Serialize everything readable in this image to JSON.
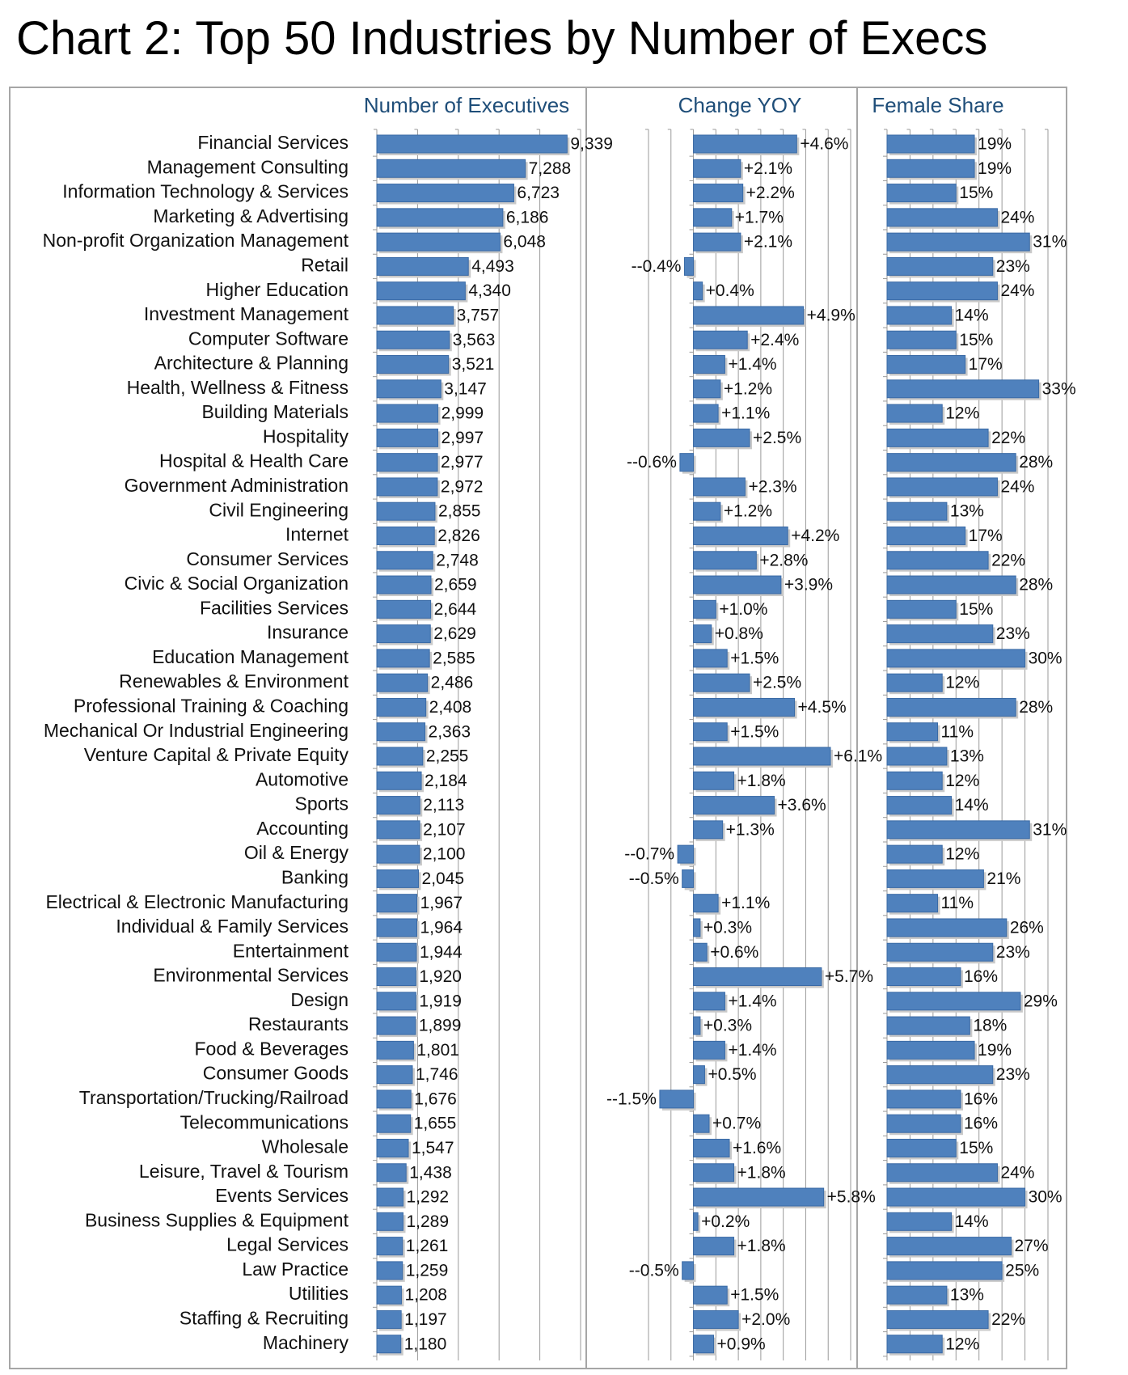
{
  "chart_data": {
    "type": "bar",
    "title": "Chart 2: Top 50 Industries by Number of Execs",
    "categories": [
      "Financial Services",
      "Management Consulting",
      "Information Technology & Services",
      "Marketing & Advertising",
      "Non-profit Organization Management",
      "Retail",
      "Higher Education",
      "Investment Management",
      "Computer Software",
      "Architecture & Planning",
      "Health, Wellness & Fitness",
      "Building Materials",
      "Hospitality",
      "Hospital & Health Care",
      "Government Administration",
      "Civil Engineering",
      "Internet",
      "Consumer Services",
      "Civic & Social Organization",
      "Facilities Services",
      "Insurance",
      "Education Management",
      "Renewables & Environment",
      "Professional Training & Coaching",
      "Mechanical Or Industrial Engineering",
      "Venture Capital & Private Equity",
      "Automotive",
      "Sports",
      "Accounting",
      "Oil & Energy",
      "Banking",
      "Electrical & Electronic Manufacturing",
      "Individual & Family Services",
      "Entertainment",
      "Environmental Services",
      "Design",
      "Restaurants",
      "Food & Beverages",
      "Consumer Goods",
      "Transportation/Trucking/Railroad",
      "Telecommunications",
      "Wholesale",
      "Leisure, Travel & Tourism",
      "Events Services",
      "Business Supplies & Equipment",
      "Legal Services",
      "Law Practice",
      "Utilities",
      "Staffing & Recruiting",
      "Machinery"
    ],
    "panels": [
      {
        "name": "Number of Executives",
        "xlim": [
          0,
          10000
        ],
        "values": [
          9339,
          7288,
          6723,
          6186,
          6048,
          4493,
          4340,
          3757,
          3563,
          3521,
          3147,
          2999,
          2997,
          2977,
          2972,
          2855,
          2826,
          2748,
          2659,
          2644,
          2629,
          2585,
          2486,
          2408,
          2363,
          2255,
          2184,
          2113,
          2107,
          2100,
          2045,
          1967,
          1964,
          1944,
          1920,
          1919,
          1899,
          1801,
          1746,
          1676,
          1655,
          1547,
          1438,
          1292,
          1289,
          1261,
          1259,
          1208,
          1197,
          1180
        ],
        "labels": [
          "9,339",
          "7,288",
          "6,723",
          "6,186",
          "6,048",
          "4,493",
          "4,340",
          "3,757",
          "3,563",
          "3,521",
          "3,147",
          "2,999",
          "2,997",
          "2,977",
          "2,972",
          "2,855",
          "2,826",
          "2,748",
          "2,659",
          "2,644",
          "2,629",
          "2,585",
          "2,486",
          "2,408",
          "2,363",
          "2,255",
          "2,184",
          "2,113",
          "2,107",
          "2,100",
          "2,045",
          "1,967",
          "1,964",
          "1,944",
          "1,920",
          "1,919",
          "1,899",
          "1,801",
          "1,746",
          "1,676",
          "1,655",
          "1,547",
          "1,438",
          "1,292",
          "1,289",
          "1,261",
          "1,259",
          "1,208",
          "1,197",
          "1,180"
        ]
      },
      {
        "name": "Change YOY",
        "xlim": [
          -2,
          7
        ],
        "values": [
          4.6,
          2.1,
          2.2,
          1.7,
          2.1,
          -0.4,
          0.4,
          4.9,
          2.4,
          1.4,
          1.2,
          1.1,
          2.5,
          -0.6,
          2.3,
          1.2,
          4.2,
          2.8,
          3.9,
          1.0,
          0.8,
          1.5,
          2.5,
          4.5,
          1.5,
          6.1,
          1.8,
          3.6,
          1.3,
          -0.7,
          -0.5,
          1.1,
          0.3,
          0.6,
          5.7,
          1.4,
          0.3,
          1.4,
          0.5,
          -1.5,
          0.7,
          1.6,
          1.8,
          5.8,
          0.2,
          1.8,
          -0.5,
          1.5,
          2.0,
          0.9
        ],
        "labels": [
          "+4.6%",
          "+2.1%",
          "+2.2%",
          "+1.7%",
          "+2.1%",
          "--0.4%",
          "+0.4%",
          "+4.9%",
          "+2.4%",
          "+1.4%",
          "+1.2%",
          "+1.1%",
          "+2.5%",
          "--0.6%",
          "+2.3%",
          "+1.2%",
          "+4.2%",
          "+2.8%",
          "+3.9%",
          "+1.0%",
          "+0.8%",
          "+1.5%",
          "+2.5%",
          "+4.5%",
          "+1.5%",
          "+6.1%",
          "+1.8%",
          "+3.6%",
          "+1.3%",
          "--0.7%",
          "--0.5%",
          "+1.1%",
          "+0.3%",
          "+0.6%",
          "+5.7%",
          "+1.4%",
          "+0.3%",
          "+1.4%",
          "+0.5%",
          "--1.5%",
          "+0.7%",
          "+1.6%",
          "+1.8%",
          "+5.8%",
          "+0.2%",
          "+1.8%",
          "--0.5%",
          "+1.5%",
          "+2.0%",
          "+0.9%"
        ]
      },
      {
        "name": "Female Share",
        "xlim": [
          0,
          35
        ],
        "values": [
          19,
          19,
          15,
          24,
          31,
          23,
          24,
          14,
          15,
          17,
          33,
          12,
          22,
          28,
          24,
          13,
          17,
          22,
          28,
          15,
          23,
          30,
          12,
          28,
          11,
          13,
          12,
          14,
          31,
          12,
          21,
          11,
          26,
          23,
          16,
          29,
          18,
          19,
          23,
          16,
          16,
          15,
          24,
          30,
          14,
          27,
          25,
          13,
          22,
          12
        ],
        "labels": [
          "19%",
          "19%",
          "15%",
          "24%",
          "31%",
          "23%",
          "24%",
          "14%",
          "15%",
          "17%",
          "33%",
          "12%",
          "22%",
          "28%",
          "24%",
          "13%",
          "17%",
          "22%",
          "28%",
          "15%",
          "23%",
          "30%",
          "12%",
          "28%",
          "11%",
          "13%",
          "12%",
          "14%",
          "31%",
          "12%",
          "21%",
          "11%",
          "26%",
          "23%",
          "16%",
          "29%",
          "18%",
          "19%",
          "23%",
          "16%",
          "16%",
          "15%",
          "24%",
          "30%",
          "14%",
          "27%",
          "25%",
          "13%",
          "22%",
          "12%"
        ]
      }
    ],
    "colors": {
      "bar": "#4f81bd",
      "bar_edge": "#3a6aa5",
      "grid": "#9a9a9a",
      "frame": "#a6a6a6",
      "header_text": "#1f4e79"
    },
    "grid": true,
    "legend": "none"
  }
}
